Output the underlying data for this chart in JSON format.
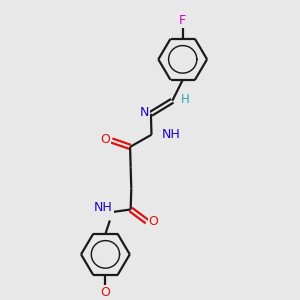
{
  "bg": "#e8e8e8",
  "bc": "#1a1a1a",
  "nc": "#2200cc",
  "oc": "#dd1111",
  "fc": "#cc00cc",
  "hc": "#22aaaa",
  "lw": 1.6,
  "fs": 9.0,
  "figsize": [
    3.0,
    3.0
  ],
  "dpi": 100,
  "xlim": [
    0,
    10
  ],
  "ylim": [
    0,
    10
  ]
}
